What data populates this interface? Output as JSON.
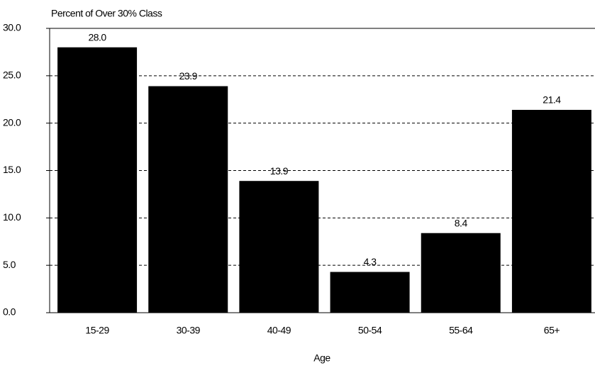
{
  "chart_data": {
    "type": "bar",
    "y_axis_label": "Percent of Over 30% Class",
    "x_axis_label": "Age",
    "categories": [
      "15-29",
      "30-39",
      "40-49",
      "50-54",
      "55-64",
      "65+"
    ],
    "values": [
      28.0,
      23.9,
      13.9,
      4.3,
      8.4,
      21.4
    ],
    "value_labels": [
      "28.0",
      "23.9",
      "13.9",
      "4.3",
      "8.4",
      "21.4"
    ],
    "color": "#000000",
    "ylim": [
      0,
      30
    ],
    "yticks": [
      {
        "value": 0,
        "label": "0.0"
      },
      {
        "value": 5,
        "label": "5.0"
      },
      {
        "value": 10,
        "label": "10.0"
      },
      {
        "value": 15,
        "label": "15.0"
      },
      {
        "value": 20,
        "label": "20.0"
      },
      {
        "value": 25,
        "label": "25.0"
      },
      {
        "value": 30,
        "label": "30.0"
      }
    ],
    "grid": true
  }
}
